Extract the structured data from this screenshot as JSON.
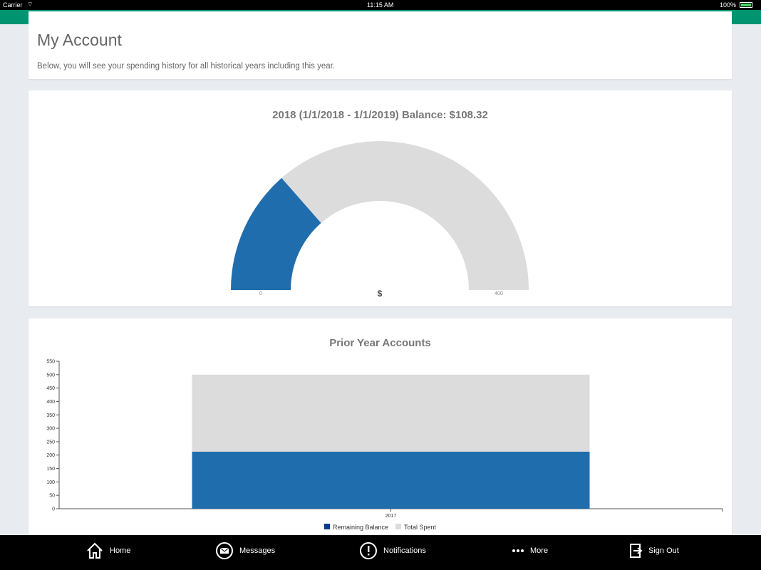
{
  "status_bar": {
    "carrier": "Carrier",
    "time": "11:15 AM",
    "battery": "100%"
  },
  "header": {
    "title": "My Account",
    "subtitle": "Below, you will see your spending history for all historical years including this year."
  },
  "gauge": {
    "title": "2018 (1/1/2018 - 1/1/2019) Balance: $108.32",
    "min_label": "0",
    "max_label": "400",
    "unit_label": "$",
    "min": 0,
    "max": 400,
    "value": 108.32,
    "fill_color": "#1f6dad",
    "track_color": "#dcdcdc"
  },
  "chart_data": {
    "type": "bar",
    "stacked": true,
    "title": "Prior Year Accounts",
    "categories": [
      "2017"
    ],
    "series": [
      {
        "name": "Remaining Balance",
        "values": [
          213
        ],
        "color": "#1f6dad",
        "legend_color": "#0d3b8a"
      },
      {
        "name": "Total Spent",
        "values": [
          287
        ],
        "color": "#dcdcdc"
      }
    ],
    "ylim": [
      0,
      550
    ],
    "yticks": [
      "0",
      "50",
      "100",
      "150",
      "200",
      "250",
      "300",
      "350",
      "400",
      "450",
      "500",
      "550"
    ],
    "legend": "bottom"
  },
  "tabbar": {
    "items": [
      {
        "label": "Home",
        "icon": "home-icon"
      },
      {
        "label": "Messages",
        "icon": "envelope-icon"
      },
      {
        "label": "Notifications",
        "icon": "alert-icon"
      },
      {
        "label": "More",
        "icon": "more-icon"
      },
      {
        "label": "Sign Out",
        "icon": "sign-out-icon"
      }
    ]
  }
}
